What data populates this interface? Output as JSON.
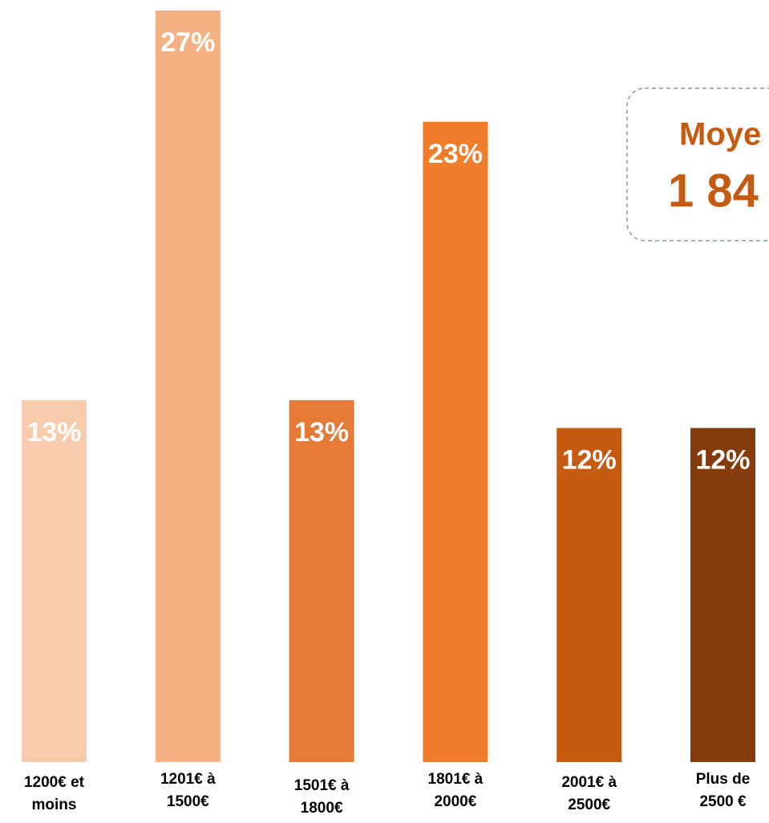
{
  "chart_data": {
    "type": "bar",
    "categories": [
      "1200€ et moins",
      "1201€ à 1500€",
      "1501€ à 1800€",
      "1801€ à 2000€",
      "2001€ à 2500€",
      "Plus de 2500 €"
    ],
    "values": [
      13,
      27,
      13,
      23,
      12,
      12
    ],
    "value_labels": [
      "13%",
      "27%",
      "13%",
      "23%",
      "12%",
      "12%"
    ],
    "colors": [
      "#f8cbad",
      "#f4b183",
      "#e57a36",
      "#f07d2a",
      "#c55a11",
      "#843c0c"
    ],
    "ylim": [
      0,
      27
    ],
    "annotations": [
      "Moye",
      "1 84"
    ]
  }
}
